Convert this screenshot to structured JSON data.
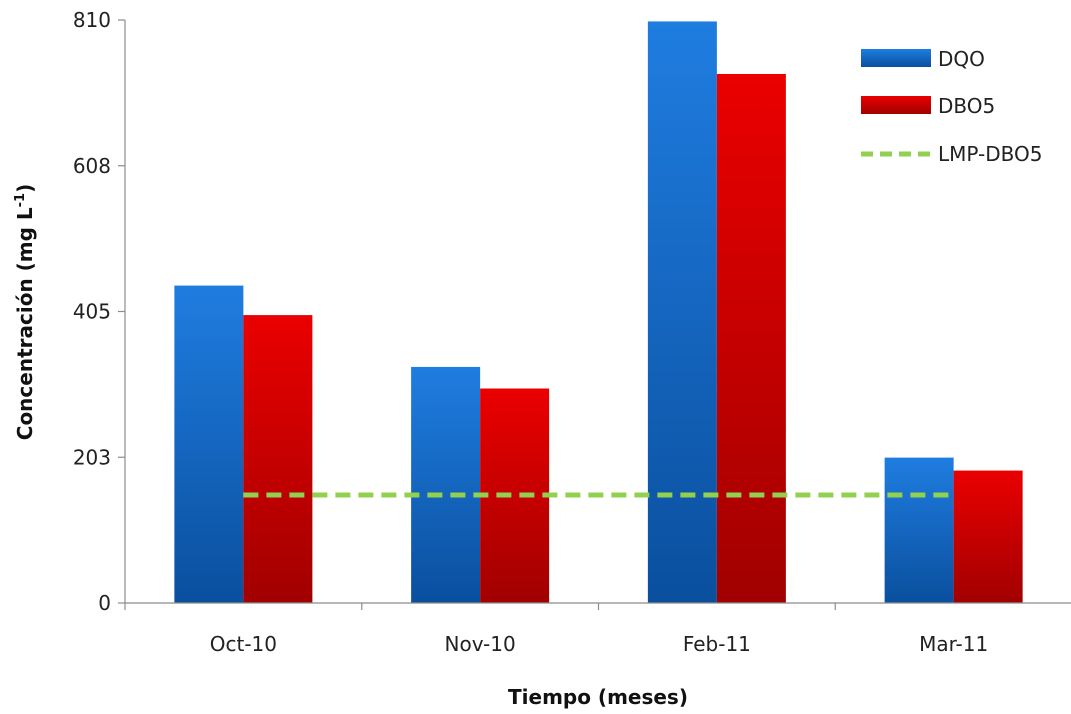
{
  "chart_data": {
    "type": "bar",
    "categories": [
      "Oct-10",
      "Nov-10",
      "Feb-11",
      "Mar-11"
    ],
    "series": [
      {
        "name": "DQO",
        "values": [
          441,
          328,
          808,
          202
        ],
        "color": "#0a62c8"
      },
      {
        "name": "DBO5",
        "values": [
          400,
          298,
          735,
          184
        ],
        "color": "#cc0000"
      }
    ],
    "reference_line": {
      "name": "LMP-DBO5",
      "value": 150,
      "color": "#92d050",
      "style": "dashed"
    },
    "y_ticks": [
      "0",
      "203",
      "405",
      "608",
      "810"
    ],
    "ylim": [
      0,
      810
    ],
    "xlabel": "Tiempo (meses)",
    "ylabel_main": "Concentración (mg L",
    "ylabel_sup": "-1",
    "ylabel_end": ")",
    "grid": false,
    "legend_position": "top-right"
  }
}
